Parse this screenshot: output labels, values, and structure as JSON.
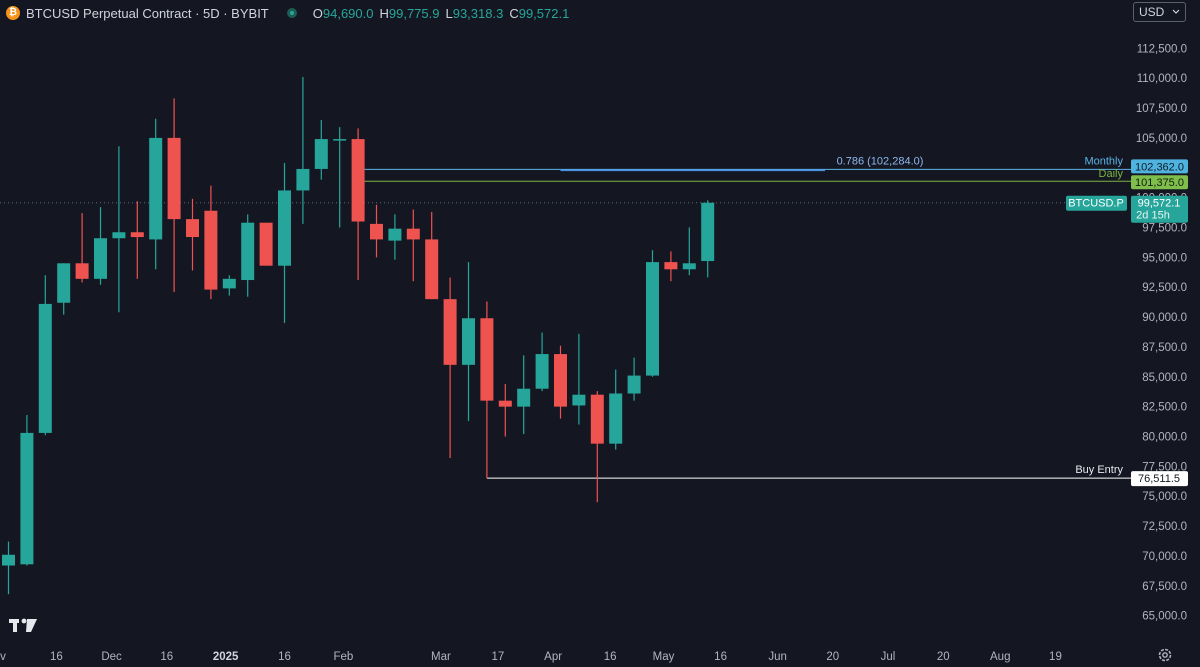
{
  "header": {
    "logo_letter": "₿",
    "title": "BTCUSD Perpetual Contract · 5D · BYBIT",
    "ohlc": [
      {
        "key": "O",
        "value": "94,690.0"
      },
      {
        "key": "H",
        "value": "99,775.9"
      },
      {
        "key": "L",
        "value": "93,318.3"
      },
      {
        "key": "C",
        "value": "99,572.1"
      }
    ]
  },
  "currency": "USD",
  "icons": [
    "bitcoin-logo-icon",
    "live-status-icon",
    "chevron-down-icon",
    "tradingview-logo-icon",
    "gear-icon"
  ],
  "colors": {
    "background": "#141722",
    "up": "#26a69a",
    "down": "#ef5350",
    "monthly_line": "#5ab4e6",
    "daily_line": "#7cb342",
    "fib_line": "#4a90e2",
    "buy_entry_line": "#ffffff",
    "price_tag": "#26a69a"
  },
  "chart_data": {
    "type": "candlestick",
    "title": "BTCUSD Perpetual Contract · 5D · BYBIT",
    "interval": "5D",
    "ylim": [
      63800,
      114200
    ],
    "y_ticks": [
      65000,
      67500,
      70000,
      72500,
      75000,
      77500,
      80000,
      82500,
      85000,
      87500,
      90000,
      92500,
      95000,
      97500,
      100000,
      102500,
      105000,
      107500,
      110000,
      112500
    ],
    "y_tick_labels": [
      "65,000.0",
      "67,500.0",
      "70,000.0",
      "72,500.0",
      "75,000.0",
      "77,500.0",
      "80,000.0",
      "82,500.0",
      "85,000.0",
      "87,500.0",
      "90,000.0",
      "92,500.0",
      "95,000.0",
      "97,500.0",
      "100,000.0",
      "102,500.0",
      "105,000.0",
      "107,500.0",
      "110,000.0",
      "112,500.0"
    ],
    "x_ticks": [
      {
        "label": "Nov",
        "bar": -0.7,
        "bold": false
      },
      {
        "label": "16",
        "bar": 2.6,
        "bold": false
      },
      {
        "label": "Dec",
        "bar": 5.6,
        "bold": false
      },
      {
        "label": "16",
        "bar": 8.6,
        "bold": false
      },
      {
        "label": "2025",
        "bar": 11.8,
        "bold": true
      },
      {
        "label": "16",
        "bar": 15.0,
        "bold": false
      },
      {
        "label": "Feb",
        "bar": 18.2,
        "bold": false
      },
      {
        "label": "Mar",
        "bar": 23.5,
        "bold": false
      },
      {
        "label": "17",
        "bar": 26.6,
        "bold": false
      },
      {
        "label": "Apr",
        "bar": 29.6,
        "bold": false
      },
      {
        "label": "16",
        "bar": 32.7,
        "bold": false
      },
      {
        "label": "May",
        "bar": 35.6,
        "bold": false
      },
      {
        "label": "16",
        "bar": 38.7,
        "bold": false
      },
      {
        "label": "Jun",
        "bar": 41.8,
        "bold": false
      },
      {
        "label": "20",
        "bar": 44.8,
        "bold": false
      },
      {
        "label": "Jul",
        "bar": 47.8,
        "bold": false
      },
      {
        "label": "20",
        "bar": 50.8,
        "bold": false
      },
      {
        "label": "Aug",
        "bar": 53.9,
        "bold": false
      },
      {
        "label": "19",
        "bar": 56.9,
        "bold": false
      }
    ],
    "candles": [
      {
        "o": 69200,
        "h": 71200,
        "l": 66800,
        "c": 70100
      },
      {
        "o": 69300,
        "h": 81800,
        "l": 69200,
        "c": 80300
      },
      {
        "o": 80300,
        "h": 93500,
        "l": 80100,
        "c": 91100
      },
      {
        "o": 91200,
        "h": 94500,
        "l": 90200,
        "c": 94500
      },
      {
        "o": 94500,
        "h": 98700,
        "l": 92900,
        "c": 93200
      },
      {
        "o": 93200,
        "h": 99200,
        "l": 92700,
        "c": 96600
      },
      {
        "o": 96600,
        "h": 104300,
        "l": 90400,
        "c": 97100
      },
      {
        "o": 97100,
        "h": 99700,
        "l": 93200,
        "c": 96700
      },
      {
        "o": 96500,
        "h": 106600,
        "l": 94000,
        "c": 105000
      },
      {
        "o": 105000,
        "h": 108300,
        "l": 92100,
        "c": 98200
      },
      {
        "o": 98200,
        "h": 99900,
        "l": 93900,
        "c": 96700
      },
      {
        "o": 98900,
        "h": 101000,
        "l": 91500,
        "c": 92300
      },
      {
        "o": 92400,
        "h": 93500,
        "l": 91800,
        "c": 93200
      },
      {
        "o": 93100,
        "h": 98600,
        "l": 91700,
        "c": 97900
      },
      {
        "o": 97900,
        "h": 97900,
        "l": 94300,
        "c": 94300
      },
      {
        "o": 94300,
        "h": 102900,
        "l": 89500,
        "c": 100600
      },
      {
        "o": 100600,
        "h": 110100,
        "l": 97800,
        "c": 102400
      },
      {
        "o": 102400,
        "h": 106500,
        "l": 101500,
        "c": 104900
      },
      {
        "o": 104800,
        "h": 105900,
        "l": 97500,
        "c": 104900
      },
      {
        "o": 104900,
        "h": 105800,
        "l": 93100,
        "c": 98000
      },
      {
        "o": 97800,
        "h": 99400,
        "l": 95000,
        "c": 96500
      },
      {
        "o": 96400,
        "h": 98600,
        "l": 94800,
        "c": 97400
      },
      {
        "o": 97400,
        "h": 99000,
        "l": 93000,
        "c": 96500
      },
      {
        "o": 96500,
        "h": 98800,
        "l": 91500,
        "c": 91500
      },
      {
        "o": 91500,
        "h": 93300,
        "l": 78200,
        "c": 86000
      },
      {
        "o": 86000,
        "h": 94600,
        "l": 81300,
        "c": 89900
      },
      {
        "o": 89900,
        "h": 91300,
        "l": 76500,
        "c": 83000
      },
      {
        "o": 83000,
        "h": 84400,
        "l": 80000,
        "c": 82500
      },
      {
        "o": 82500,
        "h": 86800,
        "l": 80200,
        "c": 84000
      },
      {
        "o": 84000,
        "h": 88700,
        "l": 83800,
        "c": 86900
      },
      {
        "o": 86900,
        "h": 87600,
        "l": 81500,
        "c": 82500
      },
      {
        "o": 82600,
        "h": 88600,
        "l": 81000,
        "c": 83500
      },
      {
        "o": 83500,
        "h": 83800,
        "l": 74500,
        "c": 79400
      },
      {
        "o": 79400,
        "h": 85600,
        "l": 78900,
        "c": 83600
      },
      {
        "o": 83600,
        "h": 86600,
        "l": 83000,
        "c": 85100
      },
      {
        "o": 85100,
        "h": 95600,
        "l": 85000,
        "c": 94600
      },
      {
        "o": 94600,
        "h": 95500,
        "l": 93000,
        "c": 94000
      },
      {
        "o": 94000,
        "h": 97500,
        "l": 93500,
        "c": 94500
      },
      {
        "o": 94690,
        "h": 99775.9,
        "l": 93318.3,
        "c": 99572.1
      }
    ],
    "levels": [
      {
        "name": "Monthly",
        "price": 102362.0,
        "label": "102,362.0",
        "kind": "monthly"
      },
      {
        "name": "Daily",
        "price": 101375.0,
        "label": "101,375.0",
        "kind": "daily"
      },
      {
        "name": "0.786 (102,284.0)",
        "price": 102284.0,
        "kind": "fib",
        "start_bar": 30
      },
      {
        "name": "Buy Entry",
        "price": 76511.5,
        "label": "76,511.5",
        "kind": "buy",
        "start_bar": 26
      }
    ],
    "last_price": {
      "symbol": "BTCUSD.P",
      "price": 99572.1,
      "label": "99,572.1",
      "countdown": "2d 15h"
    },
    "grid": false
  }
}
